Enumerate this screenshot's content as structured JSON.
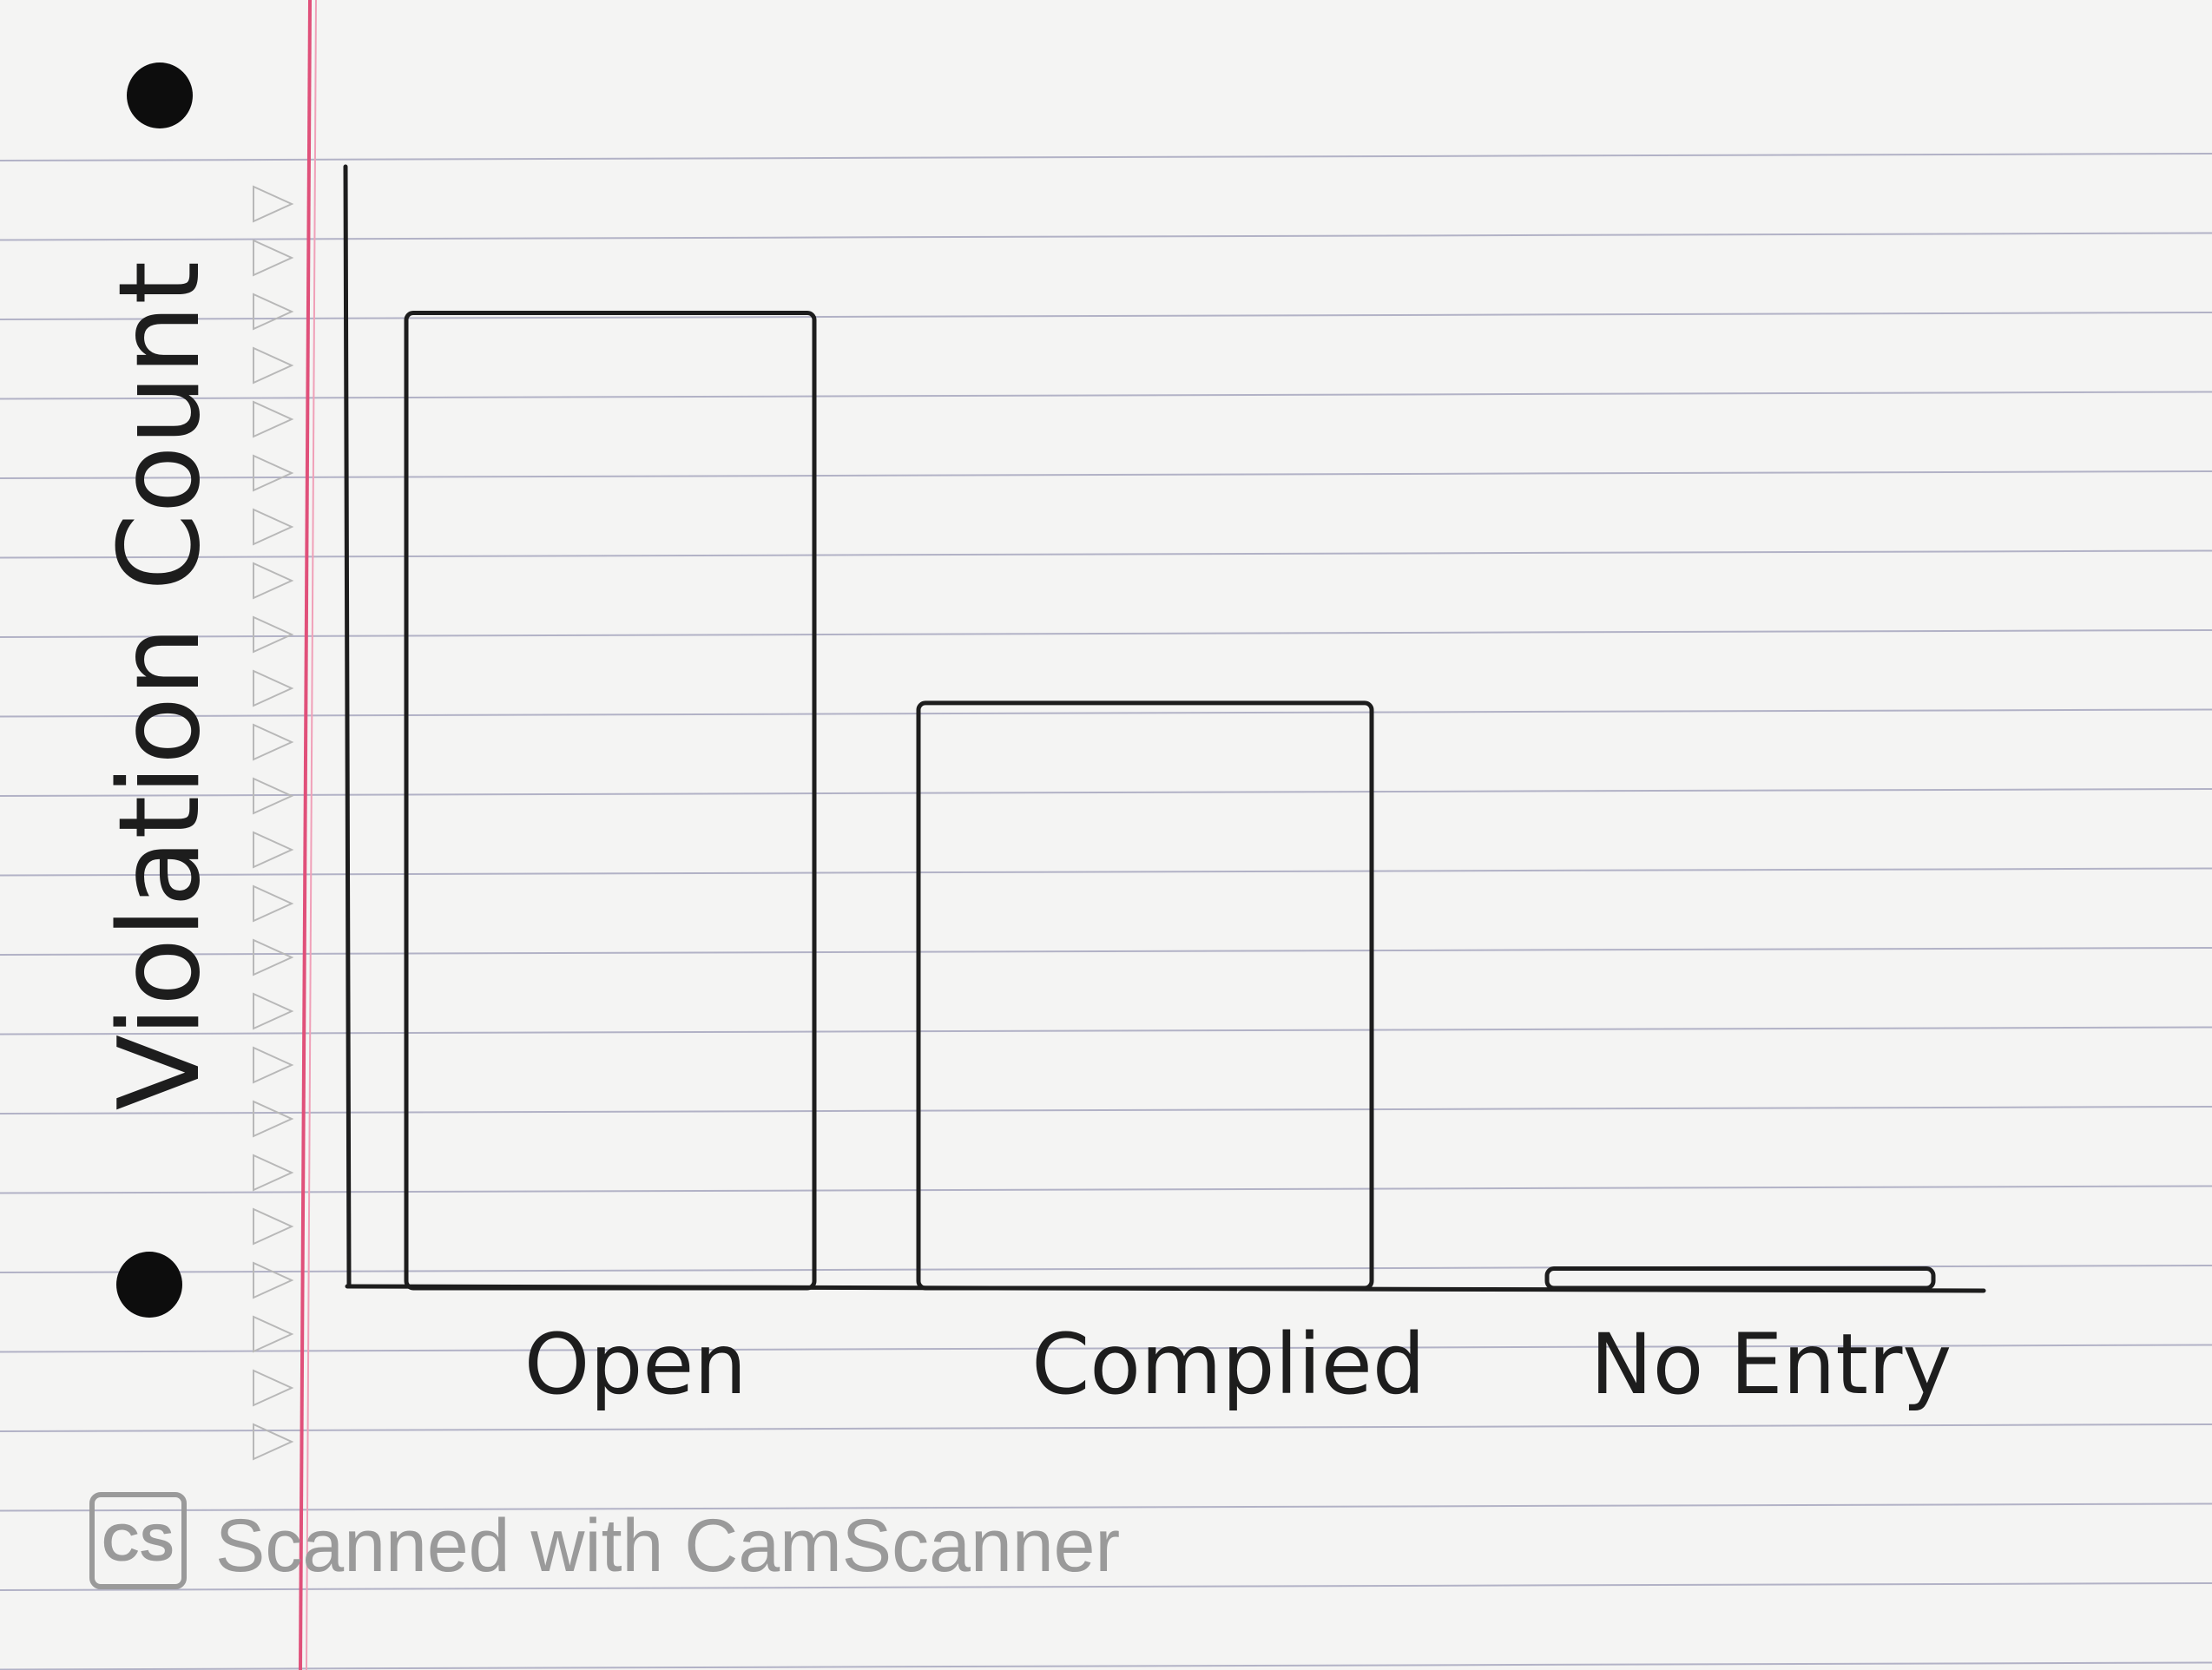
{
  "colors": {
    "paper": "#f4f4f3",
    "rule_line": "#9c9cb8",
    "margin_line": "#e0507a",
    "ink": "#1d1d1d",
    "watermark": "#9a9a9a"
  },
  "chart_data": {
    "type": "bar",
    "title": "",
    "xlabel": "",
    "ylabel": "Violation Count",
    "categories": [
      "Open",
      "Complied",
      "No Entry"
    ],
    "values": [
      100,
      60,
      2
    ],
    "ylim": [
      0,
      115
    ],
    "grid": false,
    "legend": "none"
  },
  "watermark": {
    "logo_text": "CS",
    "text": "Scanned with CamScanner"
  }
}
